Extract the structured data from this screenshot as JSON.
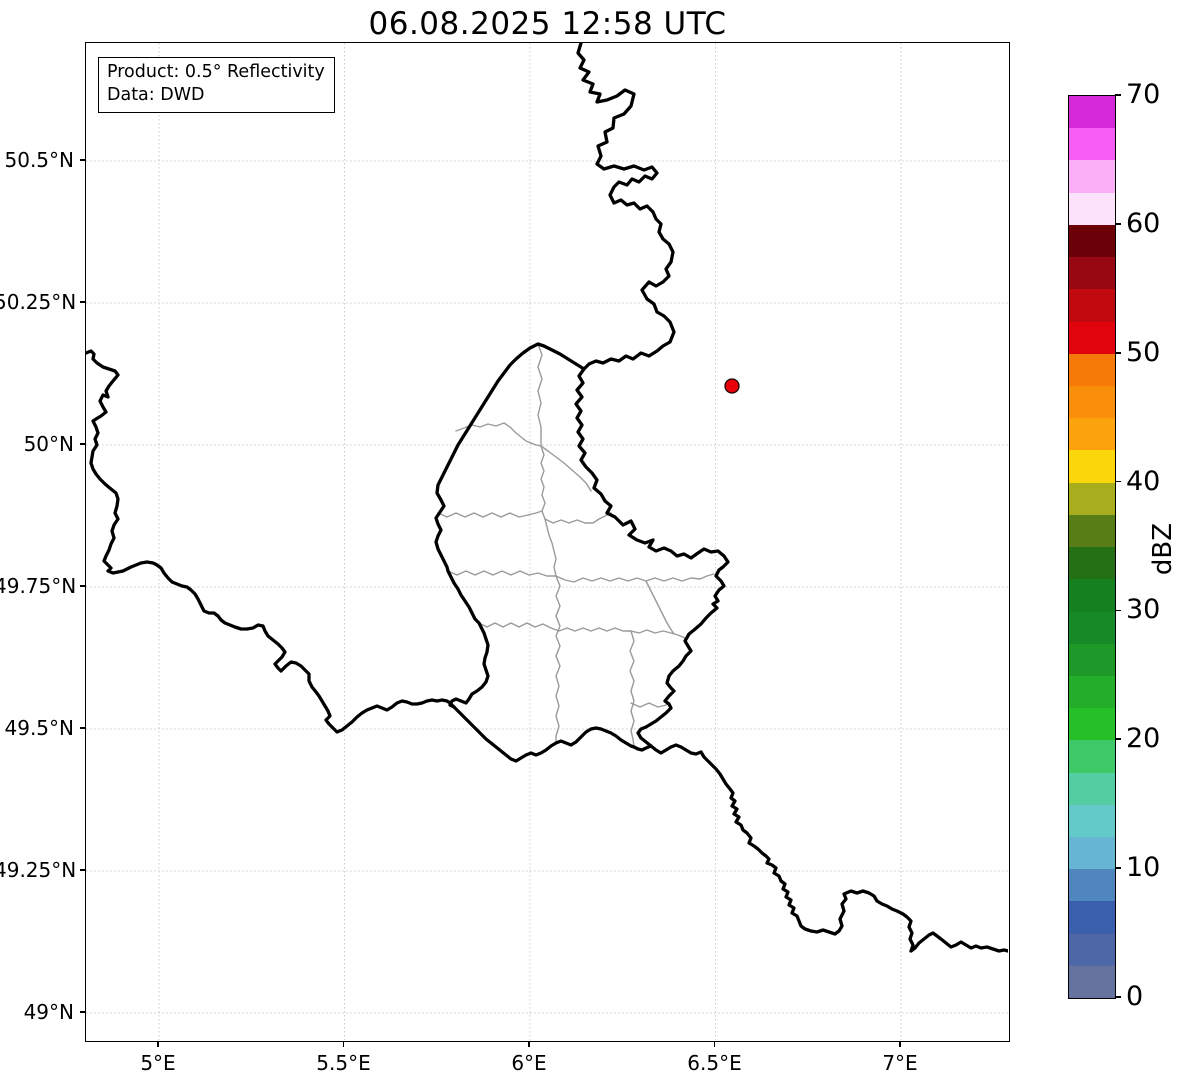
{
  "title": "06.08.2025 12:58 UTC",
  "annotation_box": {
    "line1": "Product: 0.5° Reflectivity",
    "line2": "Data: DWD"
  },
  "axes": {
    "x_tick_labels": [
      "5°E",
      "5.5°E",
      "6°E",
      "6.5°E",
      "7°E"
    ],
    "y_tick_labels": [
      "50.5°N",
      "50.25°N",
      "50°N",
      "49.75°N",
      "49.5°N",
      "49.25°N",
      "49°N"
    ]
  },
  "map_layers": {
    "country_border_color": "#000000",
    "district_border_color": "#9a9a9a",
    "grid_color": "#c8c8c8",
    "radar_marker": {
      "shape": "circle",
      "fill": "#e8000b",
      "edge": "#1a0000"
    }
  },
  "colorbar": {
    "label": "dBZ",
    "tick_labels": [
      "70",
      "60",
      "50",
      "40",
      "30",
      "20",
      "10",
      "0"
    ],
    "value_range": [
      0,
      70
    ],
    "segment_colors_top_to_bottom": [
      "#d629d8",
      "#f85ef5",
      "#faaff6",
      "#fce2fb",
      "#6b0008",
      "#970812",
      "#c10a0f",
      "#e2040c",
      "#f57a08",
      "#f98e0b",
      "#fba20d",
      "#fad60a",
      "#a8ad1e",
      "#587d17",
      "#256f15",
      "#15801f",
      "#168a26",
      "#1d9929",
      "#23ad2b",
      "#26bf28",
      "#3fc867",
      "#55cda2",
      "#63c9c9",
      "#66b5d4",
      "#4f86bd",
      "#3a5fac",
      "#4d67a7",
      "#66739f"
    ]
  }
}
